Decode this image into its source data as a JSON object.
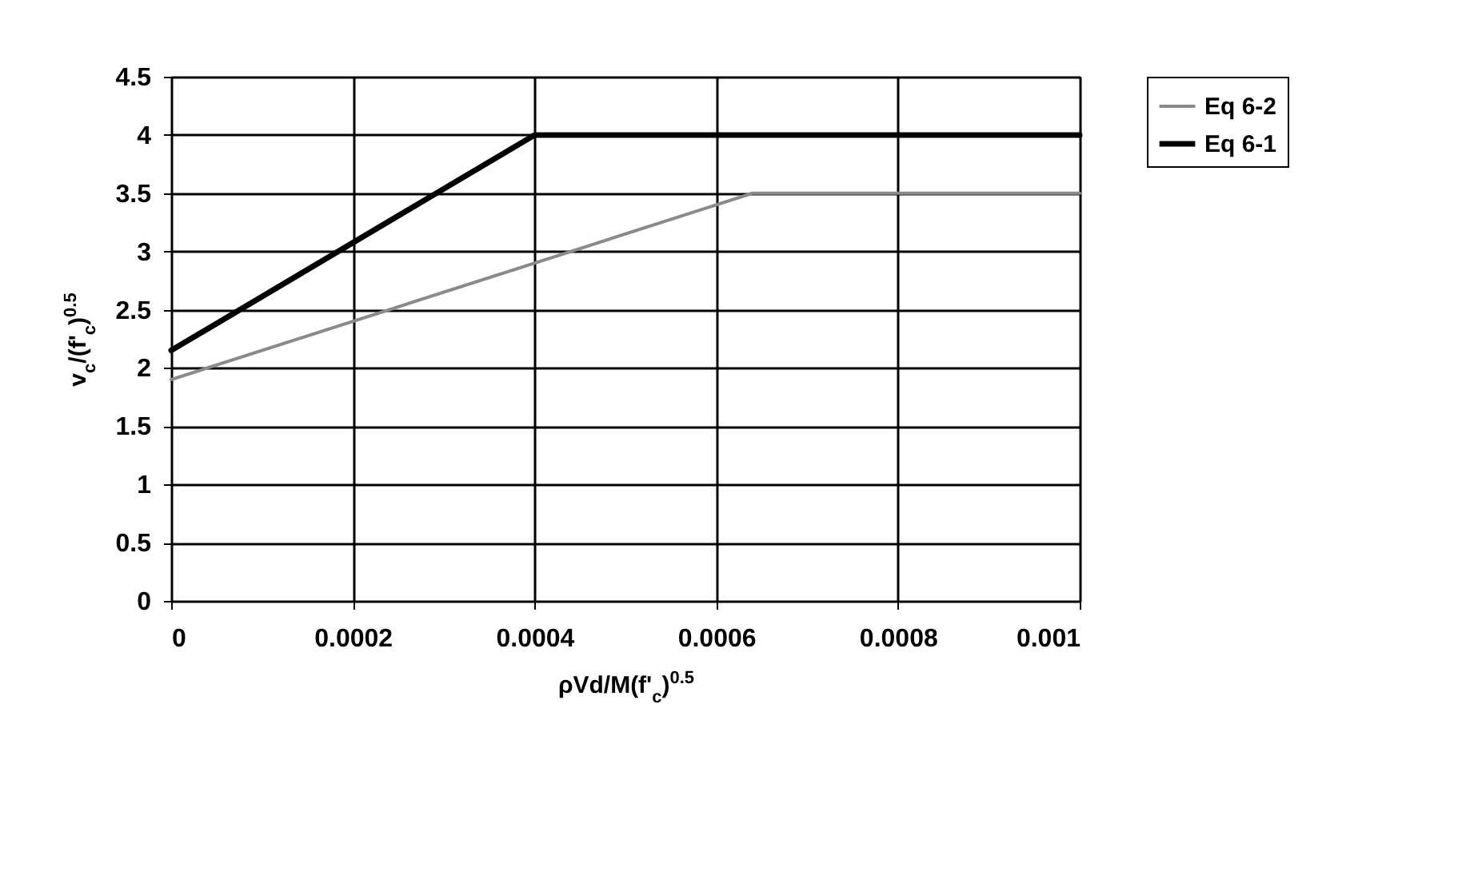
{
  "chart_data": {
    "type": "line",
    "xlabel": "ρVd/M(f'$_{c}$)$^{0.5}$",
    "ylabel": "v$_{c}$/(f'$_{c}$)$^{0.5}$",
    "series": [
      {
        "name": "Eq 6-2",
        "color": "#8a8a8a",
        "x": [
          0,
          0.00064,
          0.001
        ],
        "values": [
          1.9,
          3.5,
          3.5
        ]
      },
      {
        "name": "Eq 6-1",
        "color": "#000000",
        "x": [
          0,
          0.0004,
          0.001
        ],
        "values": [
          2.15,
          4.0,
          4.0
        ]
      }
    ],
    "xlim": [
      0,
      0.001
    ],
    "xticks": [
      0,
      0.0002,
      0.0004,
      0.0006,
      0.0008,
      0.001
    ],
    "ylim": [
      0,
      4.5
    ],
    "yticks": [
      0,
      0.5,
      1,
      1.5,
      2,
      2.5,
      3,
      3.5,
      4,
      4.5
    ],
    "grid": true,
    "legend": "right",
    "marker": "none"
  }
}
